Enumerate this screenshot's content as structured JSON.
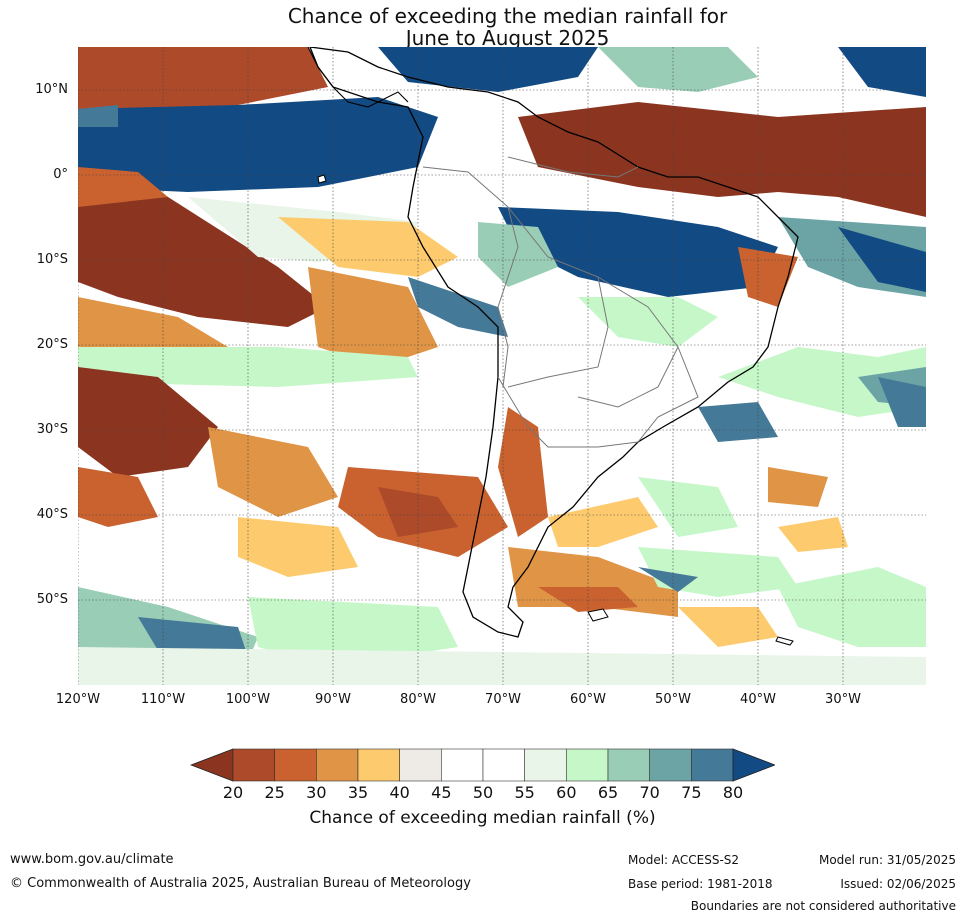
{
  "title": {
    "line1": "Chance of exceeding the median rainfall for",
    "line2": "June to August 2025"
  },
  "map": {
    "lat_labels": [
      "10°N",
      "0°",
      "10°S",
      "20°S",
      "30°S",
      "40°S",
      "50°S"
    ],
    "lon_labels": [
      "120°W",
      "110°W",
      "100°W",
      "90°W",
      "80°W",
      "70°W",
      "60°W",
      "50°W",
      "40°W",
      "30°W"
    ]
  },
  "colorbar": {
    "ticks": [
      "20",
      "25",
      "30",
      "35",
      "40",
      "45",
      "50",
      "55",
      "60",
      "65",
      "70",
      "75",
      "80"
    ],
    "colors": [
      "#8b3520",
      "#ad4a2a",
      "#c9622f",
      "#e09445",
      "#fdcb6e",
      "#eeebe6",
      "#ffffff",
      "#ffffff",
      "#e8f5e8",
      "#c6f7c9",
      "#99cdb6",
      "#6ca4a6",
      "#457998",
      "#124a83"
    ],
    "title": "Chance of exceeding median rainfall (%)"
  },
  "footer": {
    "website": "www.bom.gov.au/climate",
    "copyright": "© Commonwealth of Australia 2025, Australian Bureau of Meteorology",
    "model": "Model: ACCESS-S2",
    "base_period": "Base period: 1981-2018",
    "model_run": "Model run: 31/05/2025",
    "issued": "Issued: 02/06/2025",
    "boundaries": "Boundaries are not considered authoritative"
  }
}
